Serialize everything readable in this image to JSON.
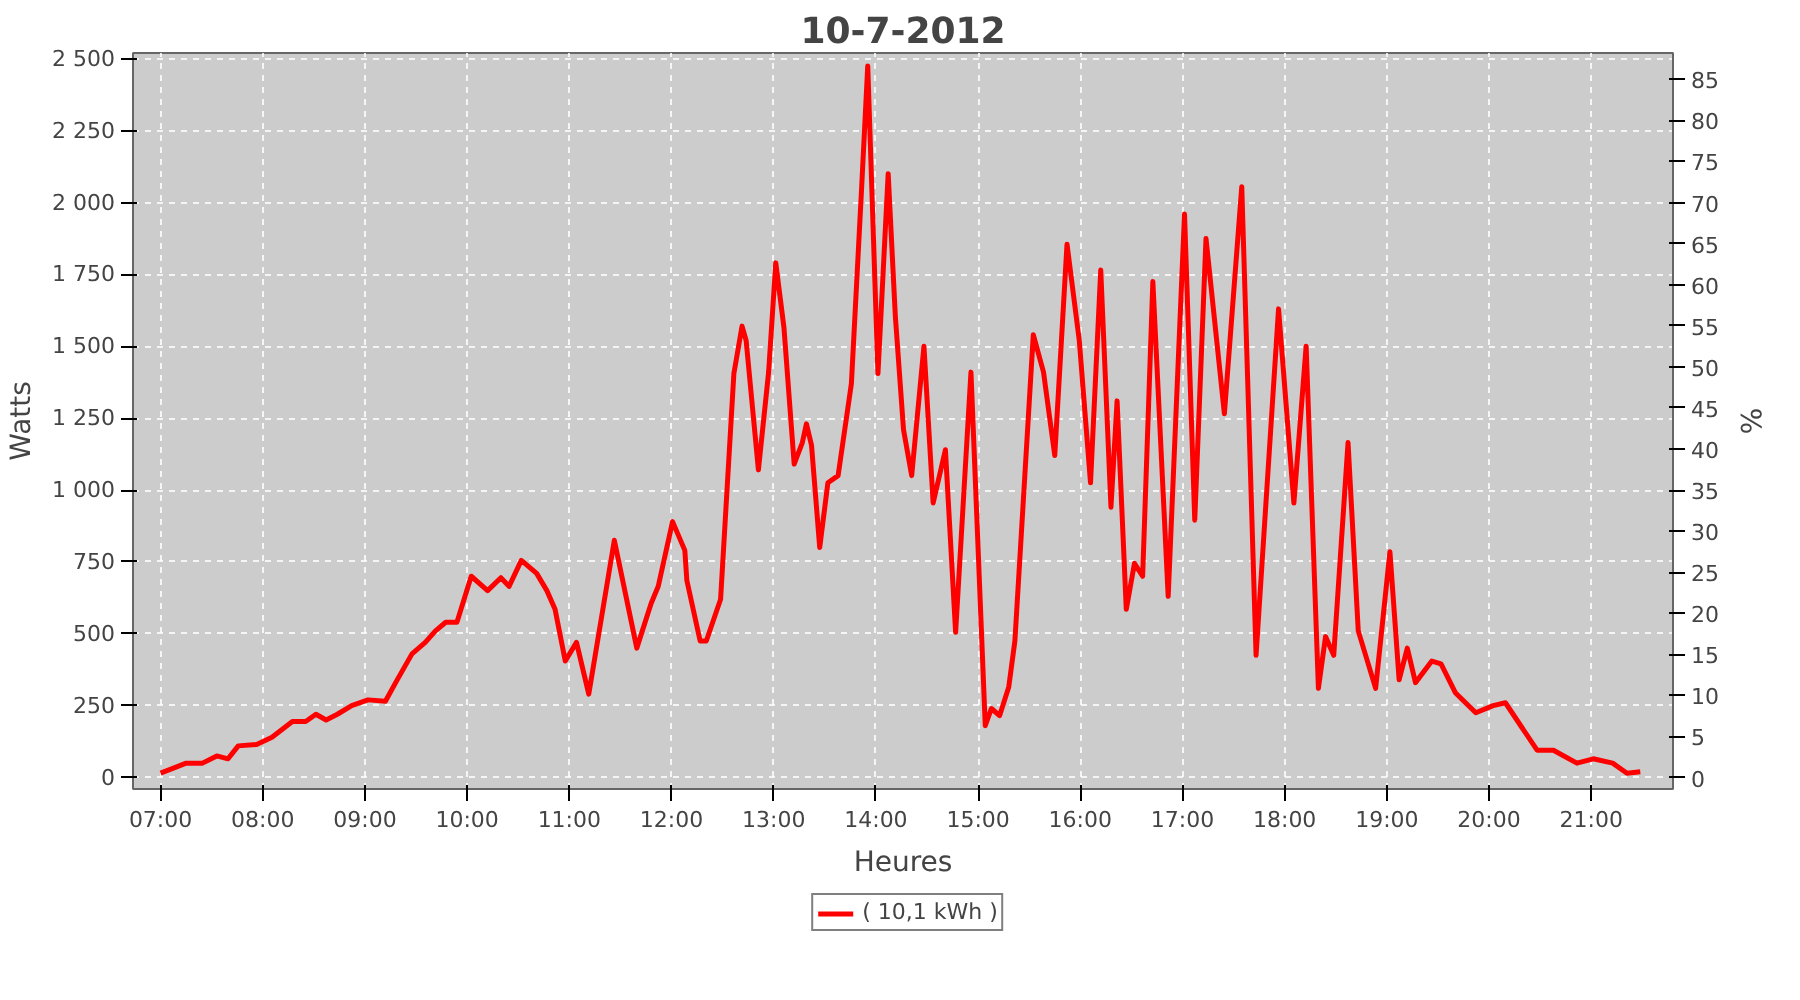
{
  "chart_data": {
    "type": "line",
    "title": "10-7-2012",
    "xlabel": "Heures",
    "ylabel": "Watts",
    "y2label": "%",
    "x": [
      7.0,
      7.25,
      7.41,
      7.55,
      7.66,
      7.76,
      7.94,
      8.09,
      8.29,
      8.42,
      8.52,
      8.62,
      8.73,
      8.87,
      9.03,
      9.2,
      9.3,
      9.46,
      9.59,
      9.69,
      9.79,
      9.9,
      10.04,
      10.2,
      10.33,
      10.41,
      10.53,
      10.68,
      10.78,
      10.86,
      10.96,
      11.07,
      11.19,
      11.44,
      11.66,
      11.8,
      11.87,
      12.01,
      12.13,
      12.15,
      12.28,
      12.34,
      12.48,
      12.61,
      12.69,
      12.73,
      12.85,
      12.95,
      13.02,
      13.1,
      13.2,
      13.28,
      13.32,
      13.37,
      13.45,
      13.53,
      13.63,
      13.76,
      13.86,
      13.92,
      14.02,
      14.12,
      14.19,
      14.27,
      14.35,
      14.47,
      14.56,
      14.68,
      14.78,
      14.93,
      15.07,
      15.13,
      15.21,
      15.3,
      15.36,
      15.54,
      15.64,
      15.75,
      15.87,
      15.99,
      16.1,
      16.2,
      16.3,
      16.36,
      16.45,
      16.53,
      16.61,
      16.71,
      16.86,
      17.02,
      17.12,
      17.23,
      17.41,
      17.58,
      17.72,
      17.94,
      18.09,
      18.21,
      18.33,
      18.4,
      18.48,
      18.62,
      18.72,
      18.89,
      19.03,
      19.12,
      19.2,
      19.28,
      19.44,
      19.53,
      19.67,
      19.87,
      20.04,
      20.16,
      20.31,
      20.47,
      20.63,
      20.86,
      21.02,
      21.21,
      21.35,
      21.48
    ],
    "series": [
      {
        "name": "( 10,1 kWh )",
        "color": "#ff0000",
        "values": [
          15,
          50,
          50,
          75,
          65,
          110,
          115,
          140,
          195,
          195,
          220,
          200,
          220,
          250,
          270,
          265,
          330,
          430,
          470,
          510,
          540,
          540,
          700,
          650,
          695,
          665,
          755,
          710,
          650,
          585,
          405,
          470,
          290,
          825,
          450,
          605,
          665,
          890,
          790,
          685,
          475,
          475,
          620,
          1405,
          1570,
          1520,
          1070,
          1410,
          1790,
          1565,
          1090,
          1165,
          1230,
          1155,
          800,
          1025,
          1050,
          1370,
          2050,
          2475,
          1405,
          2100,
          1605,
          1210,
          1050,
          1500,
          955,
          1140,
          505,
          1410,
          180,
          240,
          215,
          315,
          475,
          1540,
          1410,
          1120,
          1855,
          1520,
          1025,
          1765,
          940,
          1310,
          585,
          745,
          700,
          1725,
          630,
          1960,
          895,
          1875,
          1265,
          2055,
          425,
          1630,
          955,
          1500,
          310,
          490,
          425,
          1165,
          510,
          310,
          785,
          340,
          450,
          330,
          405,
          395,
          295,
          225,
          250,
          260,
          180,
          95,
          95,
          50,
          65,
          50,
          15,
          20
        ]
      }
    ],
    "xlim": [
      6.73,
      21.8
    ],
    "ylim": [
      -40,
      2520
    ],
    "y2lim": [
      -1.4,
      88.2
    ],
    "xticks": [
      {
        "value": 7,
        "label": "07:00"
      },
      {
        "value": 8,
        "label": "08:00"
      },
      {
        "value": 9,
        "label": "09:00"
      },
      {
        "value": 10,
        "label": "10:00"
      },
      {
        "value": 11,
        "label": "11:00"
      },
      {
        "value": 12,
        "label": "12:00"
      },
      {
        "value": 13,
        "label": "13:00"
      },
      {
        "value": 14,
        "label": "14:00"
      },
      {
        "value": 15,
        "label": "15:00"
      },
      {
        "value": 16,
        "label": "16:00"
      },
      {
        "value": 17,
        "label": "17:00"
      },
      {
        "value": 18,
        "label": "18:00"
      },
      {
        "value": 19,
        "label": "19:00"
      },
      {
        "value": 20,
        "label": "20:00"
      },
      {
        "value": 21,
        "label": "21:00"
      }
    ],
    "yticks": [
      0,
      250,
      500,
      750,
      {
        "value": 1000,
        "label": "1 000"
      },
      {
        "value": 1250,
        "label": "1 250"
      },
      {
        "value": 1500,
        "label": "1 500"
      },
      {
        "value": 1750,
        "label": "1 750"
      },
      {
        "value": 2000,
        "label": "2 000"
      },
      {
        "value": 2250,
        "label": "2 250"
      },
      {
        "value": 2500,
        "label": "2 500"
      }
    ],
    "y2ticks": [
      0,
      5,
      10,
      15,
      20,
      25,
      30,
      35,
      40,
      45,
      50,
      55,
      60,
      65,
      70,
      75,
      80,
      85
    ],
    "grid": true,
    "legend": "bottom",
    "line_style": "solid"
  }
}
